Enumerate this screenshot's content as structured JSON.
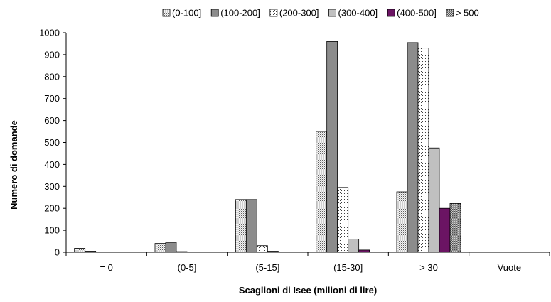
{
  "chart_data": {
    "type": "bar",
    "title": "",
    "xlabel": "Scaglioni di Isee (milioni di lire)",
    "ylabel": "Numero di domande",
    "ylim": [
      0,
      1000
    ],
    "yticks": [
      0,
      100,
      200,
      300,
      400,
      500,
      600,
      700,
      800,
      900,
      1000
    ],
    "grid": false,
    "legend_position": "top",
    "categories": [
      "= 0",
      "(0-5]",
      "(5-15]",
      "(15-30]",
      "> 30",
      "Vuote"
    ],
    "series": [
      {
        "name": "(0-100]",
        "values": [
          18,
          40,
          240,
          550,
          275,
          0
        ],
        "pattern": "dots",
        "color": "#f2f2f2"
      },
      {
        "name": "(100-200]",
        "values": [
          5,
          45,
          240,
          960,
          955,
          0
        ],
        "pattern": "solid",
        "color": "#8c8c8c"
      },
      {
        "name": "(200-300]",
        "values": [
          0,
          3,
          30,
          295,
          930,
          0
        ],
        "pattern": "dots-sparse",
        "color": "#ffffff"
      },
      {
        "name": "(300-400]",
        "values": [
          0,
          0,
          5,
          60,
          475,
          0
        ],
        "pattern": "solid",
        "color": "#c0c0c0"
      },
      {
        "name": "(400-500]",
        "values": [
          0,
          0,
          0,
          10,
          200,
          0
        ],
        "pattern": "solid",
        "color": "#6b1463"
      },
      {
        "name": "> 500",
        "values": [
          0,
          0,
          0,
          0,
          222,
          0
        ],
        "pattern": "crosshatch",
        "color": "#a8a8a8"
      }
    ]
  }
}
